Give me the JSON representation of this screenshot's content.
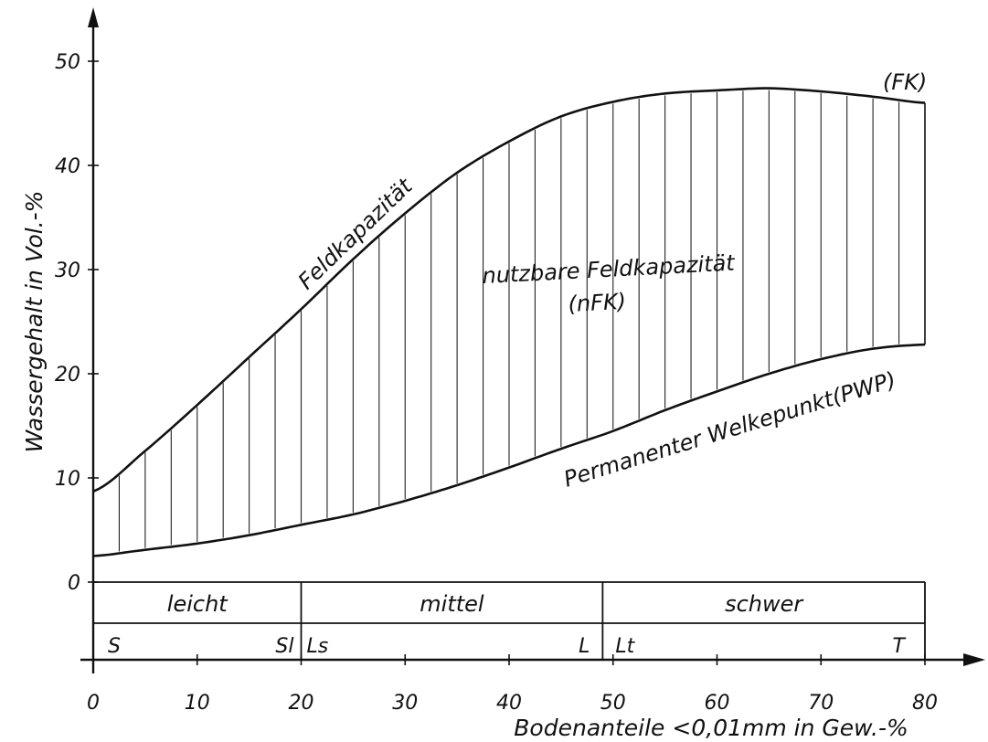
{
  "chart_data": {
    "type": "area",
    "xlabel": "Bodenanteile <0,01mm in Gew.-%",
    "ylabel": "Wassergehalt in Vol.-%",
    "xlim": [
      0,
      80
    ],
    "ylim": [
      0,
      50
    ],
    "x_ticks": [
      "0",
      "10",
      "20",
      "30",
      "40",
      "50",
      "60",
      "70",
      "80"
    ],
    "y_ticks": [
      "0",
      "10",
      "20",
      "30",
      "40",
      "50"
    ],
    "grid": false,
    "series": [
      {
        "name": "Feldkapazität",
        "end_label": "(FK)",
        "points": [
          [
            0,
            8.7
          ],
          [
            5,
            12.6
          ],
          [
            10,
            17.0
          ],
          [
            15,
            21.6
          ],
          [
            20,
            26.2
          ],
          [
            25,
            31.0
          ],
          [
            30,
            35.4
          ],
          [
            35,
            39.3
          ],
          [
            40,
            42.3
          ],
          [
            45,
            44.7
          ],
          [
            50,
            46.1
          ],
          [
            55,
            46.9
          ],
          [
            60,
            47.2
          ],
          [
            65,
            47.4
          ],
          [
            70,
            47.1
          ],
          [
            75,
            46.6
          ],
          [
            80,
            46.0
          ]
        ]
      },
      {
        "name": "Permanenter Welkepunkt(PWP)",
        "points": [
          [
            0,
            2.5
          ],
          [
            5,
            3.1
          ],
          [
            10,
            3.7
          ],
          [
            15,
            4.5
          ],
          [
            20,
            5.5
          ],
          [
            25,
            6.5
          ],
          [
            30,
            7.8
          ],
          [
            35,
            9.3
          ],
          [
            40,
            11.0
          ],
          [
            45,
            12.8
          ],
          [
            50,
            14.5
          ],
          [
            55,
            16.5
          ],
          [
            60,
            18.3
          ],
          [
            65,
            20.0
          ],
          [
            70,
            21.4
          ],
          [
            75,
            22.4
          ],
          [
            80,
            22.8
          ]
        ]
      }
    ],
    "annotations": {
      "area_label": "nutzbare Feldkapazität",
      "area_abbrev": "(nFK)"
    },
    "soil_classes": [
      {
        "label": "leicht",
        "from": 0,
        "to": 20
      },
      {
        "label": "mittel",
        "from": 20,
        "to": 49
      },
      {
        "label": "schwer",
        "from": 49,
        "to": 80
      }
    ],
    "soil_codes": [
      "S",
      "Sl",
      "Ls",
      "L",
      "Lt",
      "T"
    ]
  }
}
